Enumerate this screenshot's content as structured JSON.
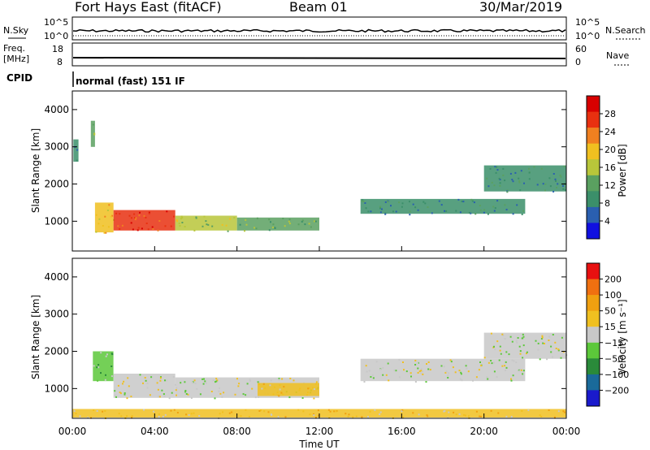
{
  "header": {
    "station": "Fort Hays East (fitACF)",
    "beam": "Beam 01",
    "date": "30/Mar/2019"
  },
  "strip_noise": {
    "left_label": "N.Sky",
    "right_label": "N.Search",
    "left_ticks": [
      "10^5",
      "10^0"
    ],
    "right_ticks": [
      "10^5",
      "10^0"
    ]
  },
  "strip_freq": {
    "left_label_1": "Freq.",
    "left_label_2": "[MHz]",
    "right_label": "Nave",
    "left_ticks": [
      "18",
      "8"
    ],
    "right_ticks": [
      "60",
      "0"
    ]
  },
  "strip_cpid": {
    "label": "CPID",
    "text": "normal (fast) 151 IF"
  },
  "chart_data": [
    {
      "type": "heatmap",
      "name": "power",
      "ylabel": "Slant Range [km]",
      "xlabel": "",
      "ylim": [
        200,
        4500
      ],
      "yticks": [
        "1000",
        "2000",
        "3000",
        "4000"
      ],
      "xlim_hours": [
        0,
        24
      ],
      "colorbar": {
        "label": "Power [dB]",
        "ticks": [
          "4",
          "8",
          "12",
          "16",
          "20",
          "24",
          "28"
        ],
        "colors": [
          "#1010e0",
          "#2a5fb0",
          "#3b8f6a",
          "#5aa060",
          "#b8c63a",
          "#f0c020",
          "#f08020",
          "#e83010",
          "#d80000"
        ]
      },
      "regions": [
        {
          "t0": 0.05,
          "t1": 0.3,
          "r0": 2600,
          "r1": 3200,
          "level": 2
        },
        {
          "t0": 0.9,
          "t1": 1.1,
          "r0": 3000,
          "r1": 3700,
          "level": 3
        },
        {
          "t0": 1.1,
          "t1": 2.0,
          "r0": 700,
          "r1": 1500,
          "level": 5
        },
        {
          "t0": 2.0,
          "t1": 5.0,
          "r0": 750,
          "r1": 1300,
          "level": 7
        },
        {
          "t0": 5.0,
          "t1": 8.0,
          "r0": 750,
          "r1": 1150,
          "level": 4
        },
        {
          "t0": 8.0,
          "t1": 12.0,
          "r0": 750,
          "r1": 1100,
          "level": 3
        },
        {
          "t0": 14.0,
          "t1": 22.0,
          "r0": 1200,
          "r1": 1600,
          "level": 2
        },
        {
          "t0": 20.0,
          "t1": 24.0,
          "r0": 1800,
          "r1": 2500,
          "level": 2
        }
      ]
    },
    {
      "type": "heatmap",
      "name": "velocity",
      "ylabel": "Slant Range [km]",
      "xlabel": "Time UT",
      "ylim": [
        200,
        4500
      ],
      "yticks": [
        "1000",
        "2000",
        "3000",
        "4000"
      ],
      "xticks": [
        "00:00",
        "04:00",
        "08:00",
        "12:00",
        "16:00",
        "20:00",
        "00:00"
      ],
      "colorbar": {
        "label": "Velocity [m s⁻¹]",
        "ticks": [
          "200",
          "100",
          "50",
          "15",
          "−15",
          "−50",
          "−100",
          "−200"
        ],
        "colors": [
          "#1a1acc",
          "#1a6a9a",
          "#2a8a3a",
          "#5cc83a",
          "#c8c8c8",
          "#f0c020",
          "#f0a010",
          "#f07010",
          "#e81010"
        ]
      },
      "regions": [
        {
          "t0": 1.0,
          "t1": 2.0,
          "r0": 1200,
          "r1": 2000,
          "level": 3
        },
        {
          "t0": 2.0,
          "t1": 5.0,
          "r0": 750,
          "r1": 1400,
          "level": 4
        },
        {
          "t0": 5.0,
          "t1": 12.0,
          "r0": 750,
          "r1": 1300,
          "level": 4
        },
        {
          "t0": 9.0,
          "t1": 12.0,
          "r0": 800,
          "r1": 1150,
          "level": 5
        },
        {
          "t0": 14.0,
          "t1": 22.0,
          "r0": 1200,
          "r1": 1800,
          "level": 4
        },
        {
          "t0": 20.0,
          "t1": 24.0,
          "r0": 1800,
          "r1": 2500,
          "level": 4
        },
        {
          "t0": 0.0,
          "t1": 24.0,
          "r0": 220,
          "r1": 450,
          "level": 5
        }
      ]
    }
  ]
}
